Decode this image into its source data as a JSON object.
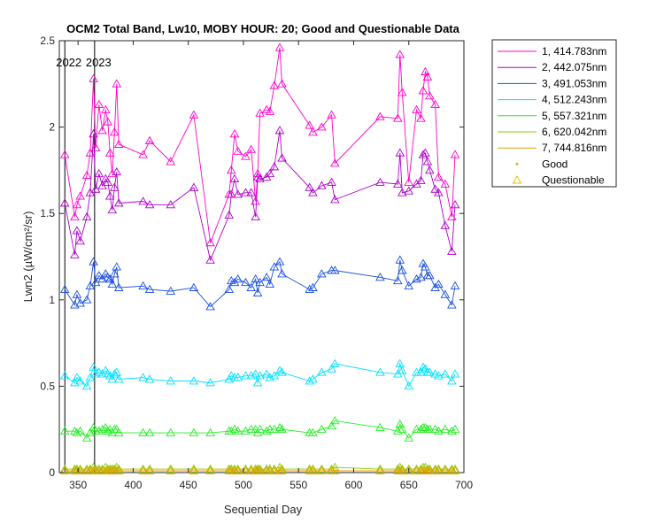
{
  "chart_data": {
    "type": "line",
    "title": "OCM2 Total Band, Lw10, MOBY HOUR: 20;  Good and Questionable Data",
    "xlabel": "Sequential Day",
    "ylabel": "Lwn2 (µW/cm²/sr)",
    "xlim": [
      333,
      700
    ],
    "ylim": [
      0,
      2.5
    ],
    "xticks": [
      350,
      400,
      450,
      500,
      550,
      600,
      650,
      700
    ],
    "yticks": [
      0,
      0.5,
      1,
      1.5,
      2,
      2.5
    ],
    "ytick_labels": [
      "0",
      "0.5",
      "1",
      "1.5",
      "2",
      "2.5"
    ],
    "grid": false,
    "legend_position": "outside-top-right",
    "year_markers": [
      {
        "x": 338,
        "label": "2022"
      },
      {
        "x": 365,
        "label": "2023"
      }
    ],
    "marker_legend": {
      "good": {
        "label": "Good",
        "color": "#f5a623"
      },
      "questionable": {
        "label": "Questionable",
        "color": "#f0c000"
      }
    },
    "x": [
      338,
      347,
      349,
      352,
      358,
      361,
      364,
      366,
      369,
      372,
      375,
      377,
      379,
      381,
      383,
      385,
      387,
      409,
      415,
      434,
      455,
      470,
      487,
      489,
      492,
      495,
      502,
      507,
      511,
      513,
      515,
      521,
      524,
      528,
      533,
      535,
      560,
      563,
      571,
      580,
      583,
      624,
      640,
      642,
      644,
      650,
      657,
      661,
      663,
      665,
      667,
      669,
      674,
      677,
      683,
      689,
      692
    ],
    "series": [
      {
        "name": "1, 414.783nm",
        "color": "#ff00cc",
        "values": [
          1.84,
          1.48,
          1.55,
          1.6,
          1.72,
          1.85,
          2.28,
          1.88,
          2.13,
          1.98,
          2.1,
          2.03,
          1.85,
          1.73,
          1.97,
          2.25,
          1.9,
          1.84,
          1.92,
          1.8,
          2.07,
          1.33,
          1.61,
          1.75,
          1.96,
          1.86,
          1.83,
          1.87,
          1.57,
          1.73,
          2.08,
          2.1,
          2.09,
          2.24,
          2.46,
          2.25,
          2.01,
          1.97,
          2.0,
          2.07,
          1.79,
          2.06,
          2.05,
          2.42,
          2.2,
          1.68,
          2.1,
          2.05,
          2.21,
          2.32,
          2.29,
          2.18,
          2.13,
          1.71,
          1.67,
          1.48,
          1.84
        ]
      },
      {
        "name": "2, 442.075nm",
        "color": "#b000cc",
        "values": [
          1.56,
          1.26,
          1.4,
          1.34,
          1.48,
          1.62,
          1.96,
          1.64,
          1.73,
          1.66,
          1.7,
          1.68,
          1.6,
          1.52,
          1.65,
          1.74,
          1.56,
          1.57,
          1.55,
          1.55,
          1.65,
          1.23,
          1.49,
          1.61,
          1.7,
          1.61,
          1.62,
          1.62,
          1.48,
          1.71,
          1.7,
          1.71,
          1.73,
          1.77,
          1.98,
          1.82,
          1.65,
          1.62,
          1.66,
          1.68,
          1.58,
          1.68,
          1.67,
          1.85,
          1.62,
          1.63,
          1.67,
          1.69,
          1.84,
          1.85,
          1.8,
          1.75,
          1.64,
          1.62,
          1.43,
          1.28,
          1.55
        ]
      },
      {
        "name": "3, 491.053nm",
        "color": "#1a4fe0",
        "values": [
          1.06,
          0.97,
          1.03,
          0.98,
          1.0,
          1.08,
          1.22,
          1.1,
          1.14,
          1.12,
          1.15,
          1.13,
          1.12,
          1.09,
          1.15,
          1.19,
          1.07,
          1.08,
          1.06,
          1.05,
          1.07,
          0.96,
          1.06,
          1.11,
          1.1,
          1.12,
          1.1,
          1.07,
          1.12,
          1.04,
          1.1,
          1.13,
          1.09,
          1.19,
          1.22,
          1.15,
          1.06,
          1.07,
          1.15,
          1.17,
          1.17,
          1.13,
          1.11,
          1.23,
          1.17,
          1.08,
          1.12,
          1.13,
          1.21,
          1.19,
          1.14,
          1.14,
          1.07,
          1.09,
          1.03,
          0.97,
          1.08
        ]
      },
      {
        "name": "4, 512.243nm",
        "color": "#00e0ff",
        "values": [
          0.56,
          0.52,
          0.55,
          0.53,
          0.5,
          0.55,
          0.61,
          0.57,
          0.58,
          0.57,
          0.59,
          0.57,
          0.56,
          0.54,
          0.57,
          0.58,
          0.54,
          0.55,
          0.54,
          0.53,
          0.53,
          0.52,
          0.54,
          0.56,
          0.55,
          0.55,
          0.56,
          0.56,
          0.57,
          0.52,
          0.56,
          0.57,
          0.55,
          0.56,
          0.59,
          0.58,
          0.53,
          0.54,
          0.58,
          0.6,
          0.63,
          0.58,
          0.57,
          0.63,
          0.59,
          0.5,
          0.58,
          0.58,
          0.61,
          0.6,
          0.58,
          0.58,
          0.57,
          0.56,
          0.57,
          0.53,
          0.57
        ]
      },
      {
        "name": "5, 557.321nm",
        "color": "#22ee22",
        "values": [
          0.24,
          0.24,
          0.23,
          0.24,
          0.2,
          0.23,
          0.26,
          0.24,
          0.24,
          0.25,
          0.26,
          0.24,
          0.25,
          0.23,
          0.25,
          0.25,
          0.23,
          0.23,
          0.23,
          0.23,
          0.23,
          0.23,
          0.24,
          0.24,
          0.25,
          0.24,
          0.24,
          0.25,
          0.25,
          0.23,
          0.25,
          0.24,
          0.25,
          0.25,
          0.26,
          0.25,
          0.23,
          0.23,
          0.25,
          0.27,
          0.3,
          0.26,
          0.24,
          0.28,
          0.25,
          0.2,
          0.25,
          0.25,
          0.26,
          0.26,
          0.25,
          0.25,
          0.25,
          0.24,
          0.25,
          0.24,
          0.25
        ]
      },
      {
        "name": "6, 620.042nm",
        "color": "#88cc00",
        "values": [
          0.02,
          0.02,
          0.02,
          0.02,
          0.02,
          0.02,
          0.03,
          0.02,
          0.02,
          0.02,
          0.03,
          0.02,
          0.02,
          0.02,
          0.02,
          0.03,
          0.02,
          0.02,
          0.02,
          0.02,
          0.02,
          0.02,
          0.02,
          0.02,
          0.02,
          0.02,
          0.02,
          0.02,
          0.02,
          0.02,
          0.02,
          0.02,
          0.02,
          0.02,
          0.03,
          0.02,
          0.02,
          0.02,
          0.02,
          0.02,
          0.03,
          0.02,
          0.02,
          0.03,
          0.02,
          0.02,
          0.02,
          0.02,
          0.03,
          0.03,
          0.02,
          0.02,
          0.02,
          0.02,
          0.02,
          0.02,
          0.02
        ]
      },
      {
        "name": "7, 744.816nm",
        "color": "#e8a000",
        "values": [
          0.01,
          0.01,
          0.01,
          0.01,
          0.01,
          0.01,
          0.01,
          0.01,
          0.01,
          0.01,
          0.01,
          0.01,
          0.01,
          0.01,
          0.01,
          0.01,
          0.01,
          0.01,
          0.01,
          0.01,
          0.01,
          0.01,
          0.01,
          0.01,
          0.01,
          0.01,
          0.01,
          0.01,
          0.01,
          0.01,
          0.01,
          0.01,
          0.01,
          0.01,
          0.01,
          0.01,
          0.01,
          0.01,
          0.01,
          0.01,
          0.01,
          0.01,
          0.01,
          0.01,
          0.01,
          0.01,
          0.01,
          0.01,
          0.01,
          0.01,
          0.01,
          0.01,
          0.01,
          0.01,
          0.01,
          0.01,
          0.01
        ]
      }
    ]
  }
}
